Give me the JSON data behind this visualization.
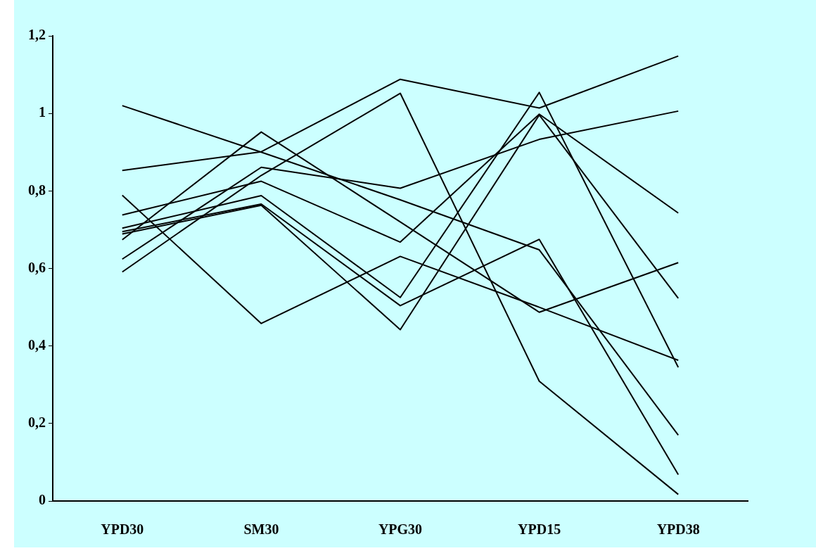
{
  "chart_data": {
    "type": "line",
    "categories": [
      "YPD30",
      "SM30",
      "YPG30",
      "YPD15",
      "YPD38"
    ],
    "ylim": [
      0,
      1.2
    ],
    "yticks": [
      0,
      {
        "value": 0.2,
        "label": "0,2"
      },
      {
        "value": 0.4,
        "label": "0,4"
      },
      {
        "value": 0.6,
        "label": "0,6"
      },
      {
        "value": 0.8,
        "label": "0,8"
      },
      1,
      {
        "value": 1.2,
        "label": "1,2"
      }
    ],
    "grid": false,
    "marker": "none",
    "line_style": "solid",
    "series": [
      {
        "color": "#000000",
        "values": [
          1.02,
          0.9,
          0.777,
          0.648,
          0.17
        ]
      },
      {
        "color": "#000000",
        "values": [
          0.853,
          0.901,
          1.088,
          1.014,
          1.148
        ]
      },
      {
        "color": "#000000",
        "values": [
          0.789,
          0.458,
          0.631,
          0.5,
          0.363
        ]
      },
      {
        "color": "#000000",
        "values": [
          0.738,
          0.825,
          0.668,
          0.998,
          0.743
        ]
      },
      {
        "color": "#000000",
        "values": [
          0.704,
          0.788,
          0.525,
          1.054,
          0.345
        ]
      },
      {
        "color": "#000000",
        "values": [
          0.695,
          0.766,
          0.504,
          0.675,
          0.068
        ]
      },
      {
        "color": "#000000",
        "values": [
          0.689,
          0.763,
          0.442,
          0.996,
          0.523
        ]
      },
      {
        "color": "#000000",
        "values": [
          0.674,
          0.952,
          0.72,
          0.487,
          0.615
        ]
      },
      {
        "color": "#000000",
        "values": [
          0.624,
          0.861,
          0.807,
          0.933,
          1.006
        ]
      },
      {
        "color": "#000000",
        "values": [
          0.591,
          0.84,
          1.052,
          0.309,
          0.017
        ]
      }
    ]
  }
}
